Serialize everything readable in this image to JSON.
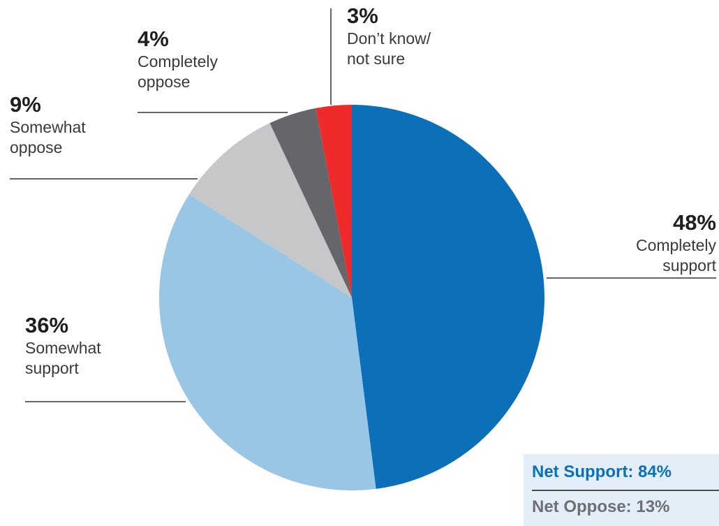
{
  "chart_data": {
    "type": "pie",
    "slices": [
      {
        "label": "Completely support",
        "value": 48,
        "display": "48%",
        "color": "#0b70b8"
      },
      {
        "label": "Somewhat support",
        "value": 36,
        "display": "36%",
        "color": "#9ac6e5"
      },
      {
        "label": "Somewhat oppose",
        "value": 9,
        "display": "9%",
        "color": "#c6c7c9"
      },
      {
        "label": "Completely oppose",
        "value": 4,
        "display": "4%",
        "color": "#65666b"
      },
      {
        "label": "Don’t know/ not sure",
        "value": 3,
        "display": "3%",
        "color": "#ee2a2b"
      }
    ],
    "start": "12 o'clock",
    "direction": "clockwise"
  },
  "labels": {
    "completely_support": {
      "pct": "48%",
      "text": "Completely support"
    },
    "somewhat_support": {
      "pct": "36%",
      "text": "Somewhat support"
    },
    "somewhat_oppose": {
      "pct": "9%",
      "text": "Somewhat oppose"
    },
    "completely_oppose": {
      "pct": "4%",
      "text": "Completely oppose"
    },
    "dont_know": {
      "pct": "3%",
      "text": "Don’t know/ not sure"
    }
  },
  "net": {
    "support": "Net Support: 84%",
    "oppose": "Net Oppose: 13%",
    "background": "#e3eef8"
  }
}
